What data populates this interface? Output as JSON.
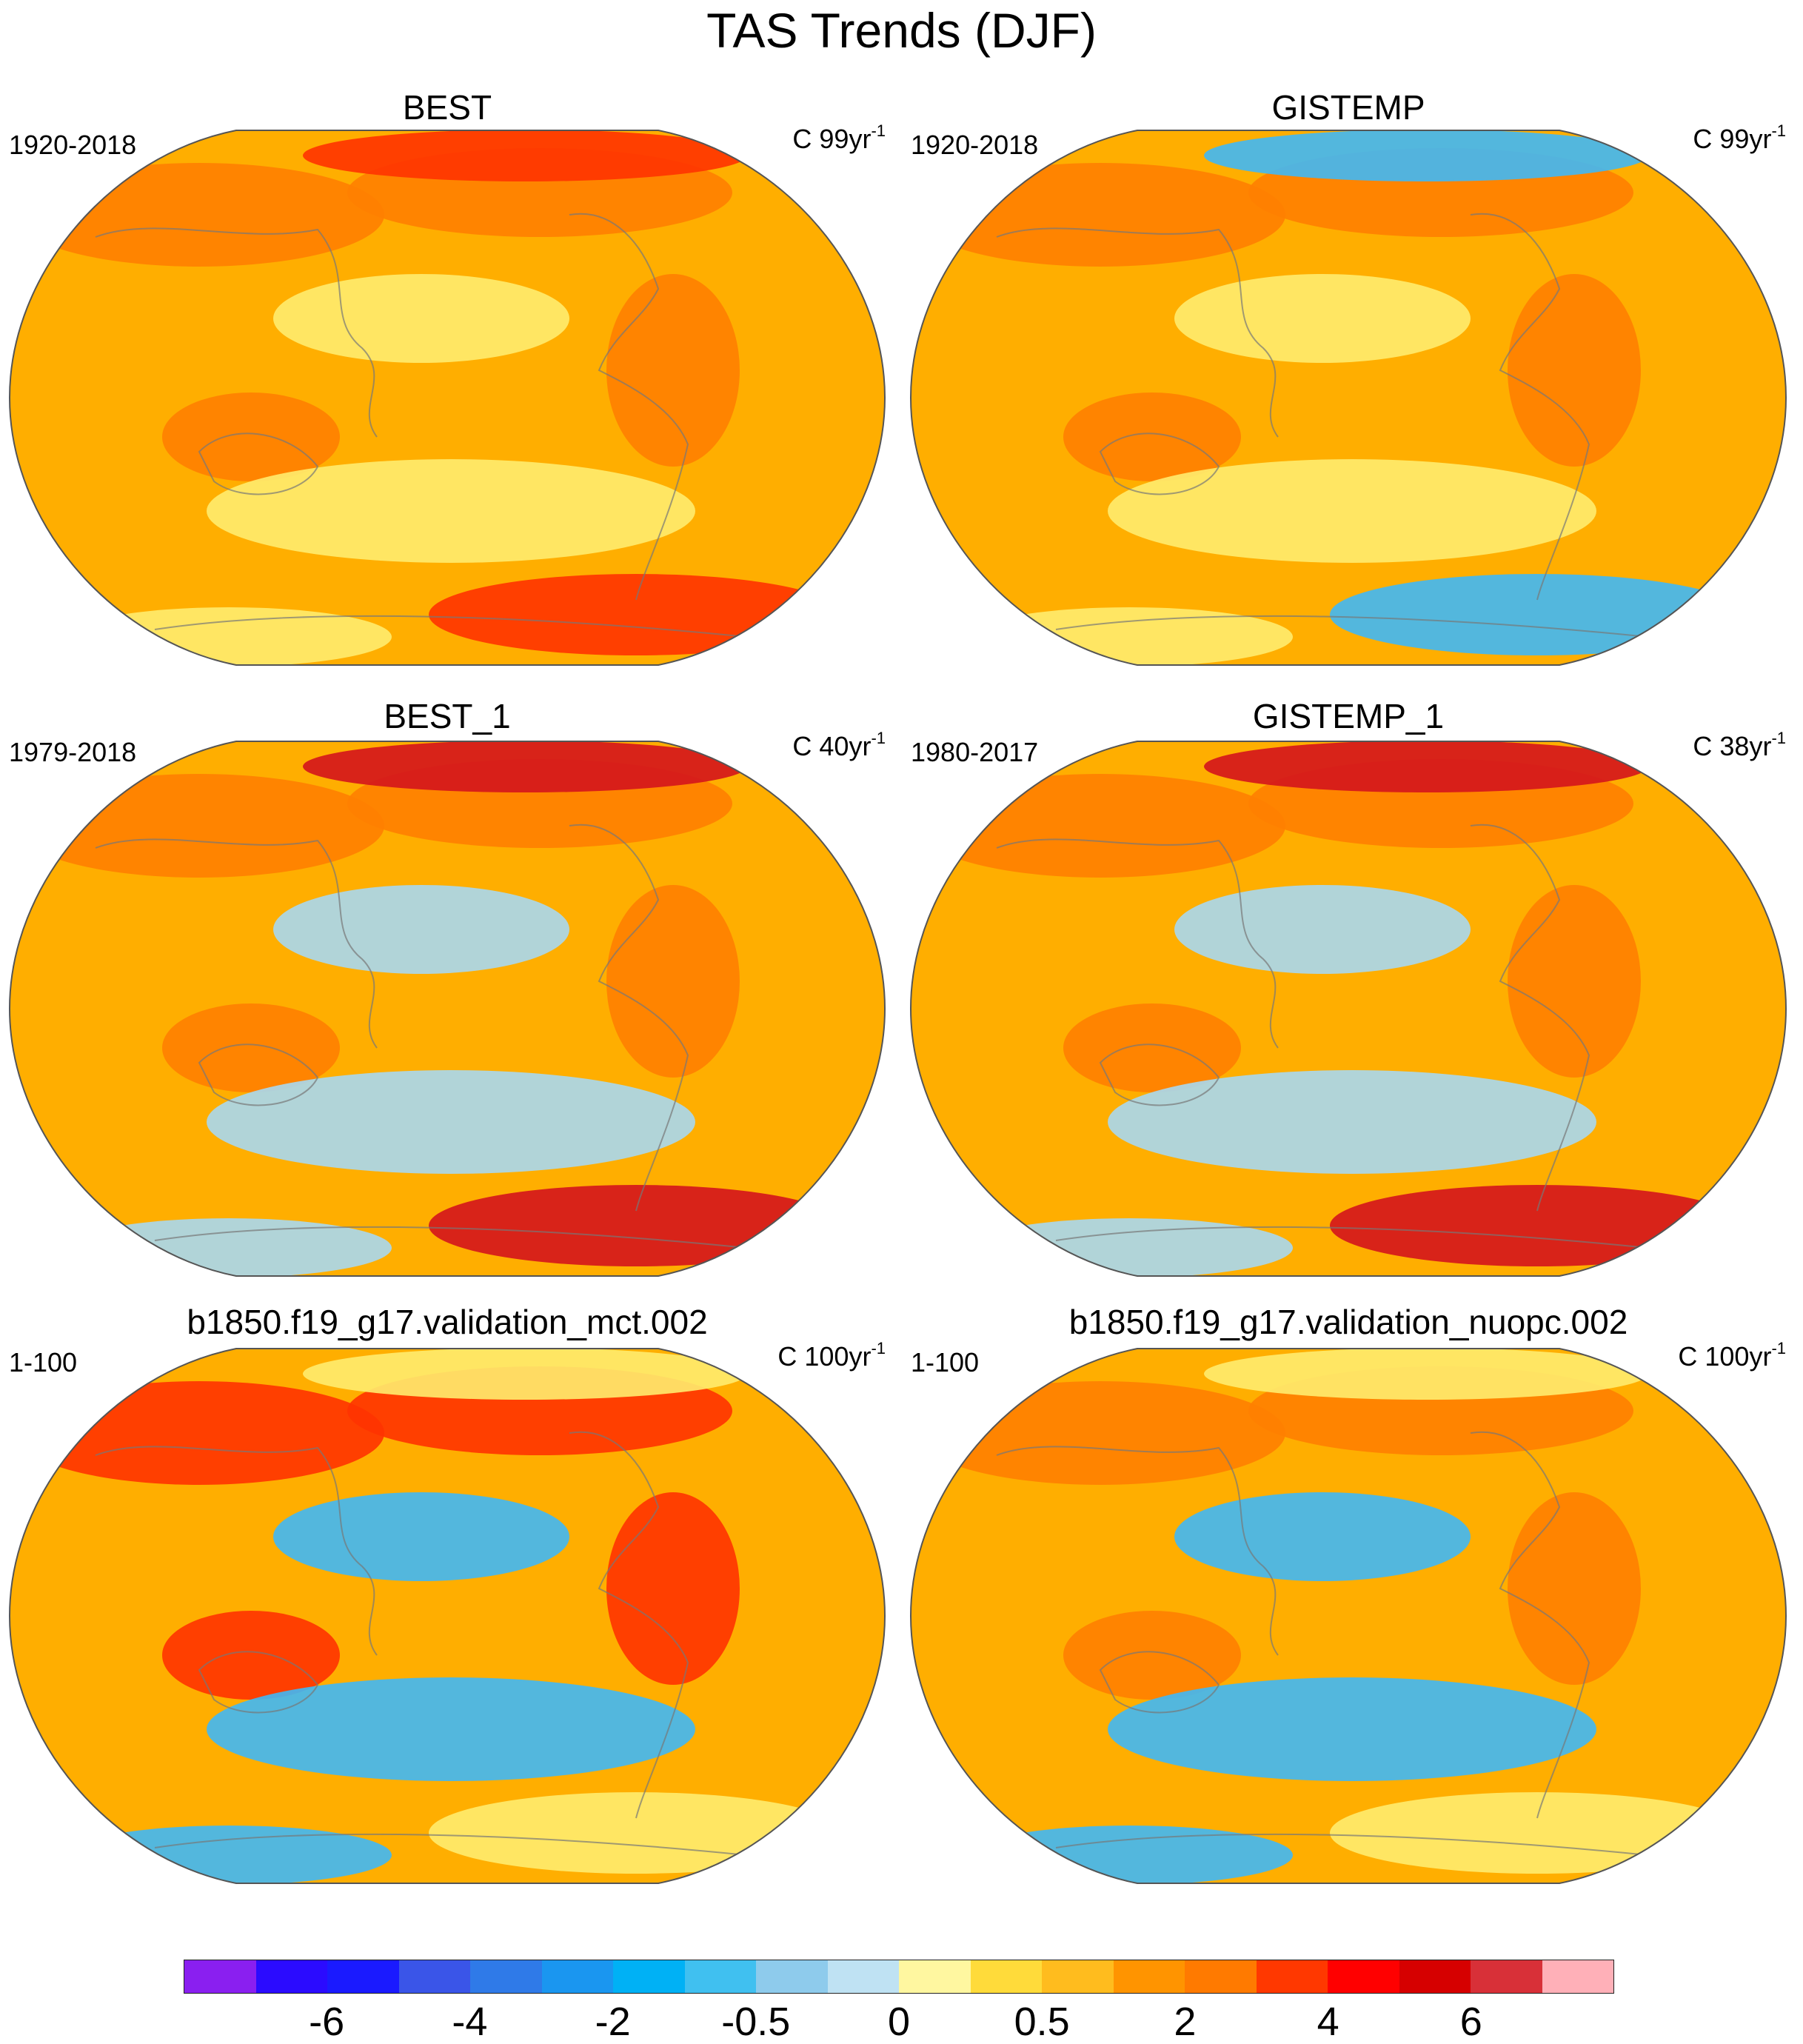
{
  "title": "TAS Trends (DJF)",
  "panels": [
    {
      "name": "BEST",
      "period": "1920-2018",
      "units": "C 99yr",
      "units_sup": "-1",
      "colors": [
        "#ffae00",
        "#ff7f00",
        "#ffec6e",
        "#ff3300"
      ]
    },
    {
      "name": "GISTEMP",
      "period": "1920-2018",
      "units": "C 99yr",
      "units_sup": "-1",
      "colors": [
        "#ffae00",
        "#ff7f00",
        "#ffec6e",
        "#40b8f5"
      ]
    },
    {
      "name": "BEST_1",
      "period": "1979-2018",
      "units": "C 40yr",
      "units_sup": "-1",
      "colors": [
        "#ffae00",
        "#ff7f00",
        "#a8d8f0",
        "#d4141c"
      ]
    },
    {
      "name": "GISTEMP_1",
      "period": "1980-2017",
      "units": "C 38yr",
      "units_sup": "-1",
      "colors": [
        "#ffae00",
        "#ff7f00",
        "#a8d8f0",
        "#d4141c"
      ]
    },
    {
      "name": "b1850.f19_g17.validation_mct.002",
      "period": "1-100",
      "units": "C 100yr",
      "units_sup": "-1",
      "colors": [
        "#ffae00",
        "#ff3300",
        "#40b8f5",
        "#ffec6e"
      ]
    },
    {
      "name": "b1850.f19_g17.validation_nuopc.002",
      "period": "1-100",
      "units": "C 100yr",
      "units_sup": "-1",
      "colors": [
        "#ffae00",
        "#ff7f00",
        "#40b8f5",
        "#ffec6e"
      ]
    }
  ],
  "colorbar": {
    "colors": [
      "#8a1ff0",
      "#2b0bff",
      "#1a1aff",
      "#3a55e8",
      "#2f7ae8",
      "#1a96f0",
      "#00b1f5",
      "#40c0f0",
      "#8ecbec",
      "#bfe2f3",
      "#fff7a0",
      "#ffdb3a",
      "#ffbc1e",
      "#ff9400",
      "#ff7a00",
      "#ff3800",
      "#ff0000",
      "#d60000",
      "#d83038",
      "#ffb0b8"
    ],
    "labels": [
      "-6",
      "-4",
      "-2",
      "-0.5",
      "0",
      "0.5",
      "2",
      "4",
      "6"
    ]
  }
}
